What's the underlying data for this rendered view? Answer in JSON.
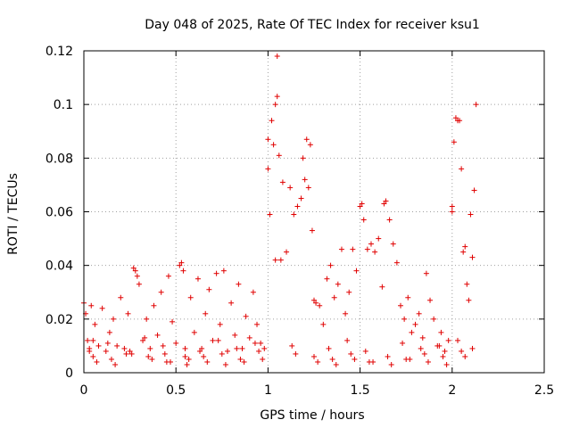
{
  "chart_data": {
    "type": "scatter",
    "title": "Day 048 of 2025, Rate Of TEC Index for receiver ksu1",
    "xlabel": "GPS time / hours",
    "ylabel": "ROTI / TECUs",
    "xlim": [
      0,
      2.5
    ],
    "ylim": [
      0,
      0.12
    ],
    "xticks": [
      0,
      0.5,
      1,
      1.5,
      2,
      2.5
    ],
    "xtick_labels": [
      "0",
      "0.5",
      "1",
      "1.5",
      "2",
      "2.5"
    ],
    "yticks": [
      0,
      0.02,
      0.04,
      0.06,
      0.08,
      0.1,
      0.12
    ],
    "ytick_labels": [
      "0",
      "0.02",
      "0.04",
      "0.06",
      "0.08",
      "0.1",
      "0.12"
    ],
    "grid": true,
    "marker": "+",
    "color": "#e00000",
    "series": [
      {
        "name": "ROTI",
        "x": [
          0.0,
          0.01,
          0.02,
          0.03,
          0.04,
          0.05,
          0.06,
          0.08,
          0.1,
          0.12,
          0.14,
          0.16,
          0.18,
          0.2,
          0.22,
          0.24,
          0.26,
          0.27,
          0.28,
          0.29,
          0.3,
          0.32,
          0.34,
          0.36,
          0.38,
          0.4,
          0.42,
          0.44,
          0.46,
          0.48,
          0.5,
          0.52,
          0.53,
          0.54,
          0.55,
          0.56,
          0.58,
          0.6,
          0.62,
          0.64,
          0.66,
          0.68,
          0.7,
          0.72,
          0.74,
          0.76,
          0.78,
          0.8,
          0.82,
          0.84,
          0.86,
          0.88,
          0.9,
          0.92,
          0.94,
          0.96,
          0.98,
          1.0,
          1.0,
          1.01,
          1.02,
          1.03,
          1.04,
          1.04,
          1.05,
          1.05,
          1.06,
          1.07,
          1.08,
          1.1,
          1.12,
          1.14,
          1.16,
          1.18,
          1.19,
          1.2,
          1.21,
          1.22,
          1.23,
          1.24,
          1.25,
          1.26,
          1.28,
          1.3,
          1.32,
          1.34,
          1.36,
          1.38,
          1.4,
          1.42,
          1.44,
          1.46,
          1.48,
          1.5,
          1.51,
          1.52,
          1.54,
          1.56,
          1.58,
          1.6,
          1.62,
          1.63,
          1.64,
          1.66,
          1.68,
          1.7,
          1.72,
          1.74,
          1.76,
          1.78,
          1.8,
          1.82,
          1.84,
          1.86,
          1.88,
          1.9,
          1.92,
          1.94,
          1.96,
          1.98,
          2.0,
          2.0,
          2.01,
          2.02,
          2.03,
          2.04,
          2.05,
          2.06,
          2.07,
          2.08,
          2.09,
          2.1,
          2.11,
          2.12,
          2.13,
          0.05,
          0.15,
          0.25,
          0.35,
          0.45,
          0.55,
          0.65,
          0.75,
          0.85,
          0.95,
          1.15,
          1.25,
          1.35,
          1.45,
          1.55,
          1.65,
          1.75,
          1.85,
          1.95,
          2.05,
          0.03,
          0.13,
          0.23,
          0.33,
          0.43,
          0.63,
          0.73,
          0.83,
          0.93,
          1.13,
          1.33,
          1.43,
          1.53,
          1.73,
          1.83,
          1.93,
          2.03,
          2.11,
          0.07,
          0.17,
          0.37,
          0.47,
          0.57,
          0.67,
          0.77,
          0.87,
          0.97,
          1.27,
          1.37,
          1.47,
          1.57,
          1.67,
          1.77,
          1.87,
          1.97,
          2.07
        ],
        "y": [
          0.026,
          0.022,
          0.012,
          0.008,
          0.025,
          0.006,
          0.018,
          0.01,
          0.024,
          0.008,
          0.015,
          0.02,
          0.01,
          0.028,
          0.009,
          0.022,
          0.007,
          0.039,
          0.038,
          0.036,
          0.033,
          0.012,
          0.02,
          0.009,
          0.025,
          0.014,
          0.03,
          0.007,
          0.036,
          0.019,
          0.011,
          0.04,
          0.041,
          0.038,
          0.006,
          0.003,
          0.028,
          0.015,
          0.035,
          0.009,
          0.022,
          0.031,
          0.012,
          0.037,
          0.018,
          0.038,
          0.008,
          0.026,
          0.014,
          0.033,
          0.009,
          0.021,
          0.013,
          0.03,
          0.018,
          0.011,
          0.009,
          0.087,
          0.076,
          0.059,
          0.094,
          0.085,
          0.1,
          0.042,
          0.118,
          0.103,
          0.081,
          0.042,
          0.071,
          0.045,
          0.069,
          0.059,
          0.062,
          0.065,
          0.08,
          0.072,
          0.087,
          0.069,
          0.085,
          0.053,
          0.027,
          0.026,
          0.025,
          0.018,
          0.035,
          0.04,
          0.028,
          0.033,
          0.046,
          0.022,
          0.03,
          0.046,
          0.038,
          0.062,
          0.063,
          0.057,
          0.046,
          0.048,
          0.045,
          0.05,
          0.032,
          0.063,
          0.064,
          0.057,
          0.048,
          0.041,
          0.025,
          0.02,
          0.028,
          0.015,
          0.018,
          0.022,
          0.013,
          0.037,
          0.027,
          0.02,
          0.01,
          0.015,
          0.008,
          0.012,
          0.06,
          0.062,
          0.086,
          0.095,
          0.094,
          0.094,
          0.076,
          0.045,
          0.047,
          0.033,
          0.027,
          0.059,
          0.043,
          0.068,
          0.1,
          0.012,
          0.005,
          0.008,
          0.006,
          0.004,
          0.009,
          0.006,
          0.007,
          0.005,
          0.008,
          0.007,
          0.006,
          0.005,
          0.007,
          0.004,
          0.006,
          0.005,
          0.007,
          0.006,
          0.008,
          0.009,
          0.011,
          0.007,
          0.013,
          0.01,
          0.008,
          0.012,
          0.009,
          0.011,
          0.01,
          0.009,
          0.012,
          0.008,
          0.011,
          0.009,
          0.01,
          0.012,
          0.009,
          0.004,
          0.003,
          0.005,
          0.004,
          0.005,
          0.004,
          0.003,
          0.004,
          0.005,
          0.004,
          0.003,
          0.005,
          0.004,
          0.003,
          0.005,
          0.004,
          0.003,
          0.006
        ]
      }
    ]
  }
}
